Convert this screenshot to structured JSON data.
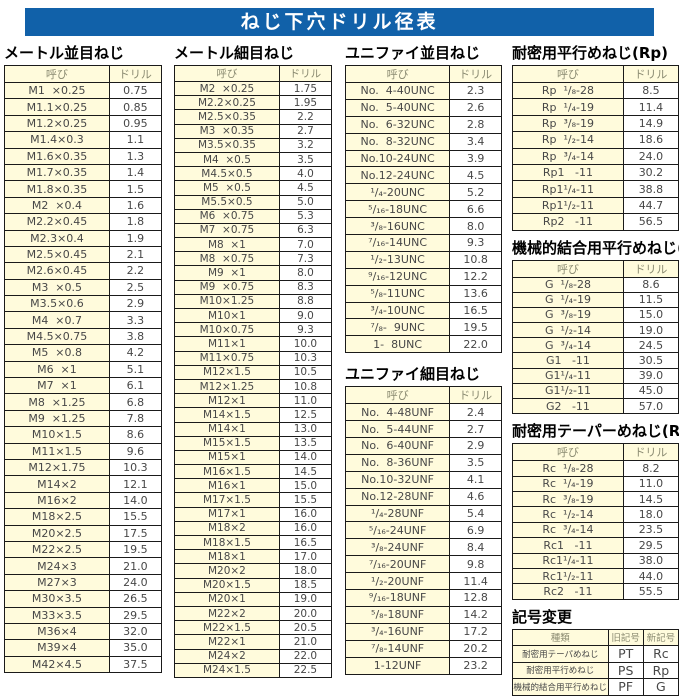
{
  "title": "ねじ下穴ドリル径表",
  "colors": {
    "title_bar_blue": "#1161a9",
    "cell_yellow": "#fffbdc",
    "header_text_gray": "#8b8b72",
    "data_text_gray": "#474747",
    "border_black": "#1a1a1a"
  },
  "sections": {
    "metric_coarse": {
      "title": "メートル並目ねじ",
      "headers": [
        "呼び",
        "ドリル"
      ],
      "rows": [
        [
          "M1  ×0.25",
          "0.75"
        ],
        [
          "M1.1×0.25",
          "0.85"
        ],
        [
          "M1.2×0.25",
          "0.95"
        ],
        [
          "M1.4×0.3",
          "1.1"
        ],
        [
          "M1.6×0.35",
          "1.3"
        ],
        [
          "M1.7×0.35",
          "1.4"
        ],
        [
          "M1.8×0.35",
          "1.5"
        ],
        [
          "M2  ×0.4",
          "1.6"
        ],
        [
          "M2.2×0.45",
          "1.8"
        ],
        [
          "M2.3×0.4",
          "1.9"
        ],
        [
          "M2.5×0.45",
          "2.1"
        ],
        [
          "M2.6×0.45",
          "2.2"
        ],
        [
          "M3  ×0.5",
          "2.5"
        ],
        [
          "M3.5×0.6",
          "2.9"
        ],
        [
          "M4  ×0.7",
          "3.3"
        ],
        [
          "M4.5×0.75",
          "3.8"
        ],
        [
          "M5  ×0.8",
          "4.2"
        ],
        [
          "M6  ×1",
          "5.1"
        ],
        [
          "M7  ×1",
          "6.1"
        ],
        [
          "M8  ×1.25",
          "6.8"
        ],
        [
          "M9  ×1.25",
          "7.8"
        ],
        [
          "M10×1.5",
          "8.6"
        ],
        [
          "M11×1.5",
          "9.6"
        ],
        [
          "M12×1.75",
          "10.3"
        ],
        [
          "M14×2",
          "12.1"
        ],
        [
          "M16×2",
          "14.0"
        ],
        [
          "M18×2.5",
          "15.5"
        ],
        [
          "M20×2.5",
          "17.5"
        ],
        [
          "M22×2.5",
          "19.5"
        ],
        [
          "M24×3",
          "21.0"
        ],
        [
          "M27×3",
          "24.0"
        ],
        [
          "M30×3.5",
          "26.5"
        ],
        [
          "M33×3.5",
          "29.5"
        ],
        [
          "M36×4",
          "32.0"
        ],
        [
          "M39×4",
          "35.0"
        ],
        [
          "M42×4.5",
          "37.5"
        ]
      ]
    },
    "metric_fine": {
      "title": "メートル細目ねじ",
      "headers": [
        "呼び",
        "ドリル"
      ],
      "rows": [
        [
          "M2  ×0.25",
          "1.75"
        ],
        [
          "M2.2×0.25",
          "1.95"
        ],
        [
          "M2.5×0.35",
          "2.2"
        ],
        [
          "M3  ×0.35",
          "2.7"
        ],
        [
          "M3.5×0.35",
          "3.2"
        ],
        [
          "M4  ×0.5",
          "3.5"
        ],
        [
          "M4.5×0.5",
          "4.0"
        ],
        [
          "M5  ×0.5",
          "4.5"
        ],
        [
          "M5.5×0.5",
          "5.0"
        ],
        [
          "M6  ×0.75",
          "5.3"
        ],
        [
          "M7  ×0.75",
          "6.3"
        ],
        [
          "M8  ×1",
          "7.0"
        ],
        [
          "M8  ×0.75",
          "7.3"
        ],
        [
          "M9  ×1",
          "8.0"
        ],
        [
          "M9  ×0.75",
          "8.3"
        ],
        [
          "M10×1.25",
          "8.8"
        ],
        [
          "M10×1",
          "9.0"
        ],
        [
          "M10×0.75",
          "9.3"
        ],
        [
          "M11×1",
          "10.0"
        ],
        [
          "M11×0.75",
          "10.3"
        ],
        [
          "M12×1.5",
          "10.5"
        ],
        [
          "M12×1.25",
          "10.8"
        ],
        [
          "M12×1",
          "11.0"
        ],
        [
          "M14×1.5",
          "12.5"
        ],
        [
          "M14×1",
          "13.0"
        ],
        [
          "M15×1.5",
          "13.5"
        ],
        [
          "M15×1",
          "14.0"
        ],
        [
          "M16×1.5",
          "14.5"
        ],
        [
          "M16×1",
          "15.0"
        ],
        [
          "M17×1.5",
          "15.5"
        ],
        [
          "M17×1",
          "16.0"
        ],
        [
          "M18×2",
          "16.0"
        ],
        [
          "M18×1.5",
          "16.5"
        ],
        [
          "M18×1",
          "17.0"
        ],
        [
          "M20×2",
          "18.0"
        ],
        [
          "M20×1.5",
          "18.5"
        ],
        [
          "M20×1",
          "19.0"
        ],
        [
          "M22×2",
          "20.0"
        ],
        [
          "M22×1.5",
          "20.5"
        ],
        [
          "M22×1",
          "21.0"
        ],
        [
          "M24×2",
          "22.0"
        ],
        [
          "M24×1.5",
          "22.5"
        ]
      ]
    },
    "unified_coarse": {
      "title": "ユニファイ並目ねじ",
      "headers": [
        "呼び",
        "ドリル"
      ],
      "rows": [
        [
          "No.  4-40UNC",
          "2.3"
        ],
        [
          "No.  5-40UNC",
          "2.6"
        ],
        [
          "No.  6-32UNC",
          "2.8"
        ],
        [
          "No.  8-32UNC",
          "3.4"
        ],
        [
          "No.10-24UNC",
          "3.9"
        ],
        [
          "No.12-24UNC",
          "4.5"
        ],
        [
          "¹/₄-20UNC",
          "5.2"
        ],
        [
          "⁵/₁₆-18UNC",
          "6.6"
        ],
        [
          "³/₈-16UNC",
          "8.0"
        ],
        [
          "⁷/₁₆-14UNC",
          "9.3"
        ],
        [
          "¹/₂-13UNC",
          "10.8"
        ],
        [
          "⁹/₁₆-12UNC",
          "12.2"
        ],
        [
          "⁵/₈-11UNC",
          "13.6"
        ],
        [
          "³/₄-10UNC",
          "16.5"
        ],
        [
          "⁷/₈-  9UNC",
          "19.5"
        ],
        [
          "1-  8UNC",
          "22.0"
        ]
      ]
    },
    "unified_fine": {
      "title": "ユニファイ細目ねじ",
      "headers": [
        "呼び",
        "ドリル"
      ],
      "rows": [
        [
          "No.  4-48UNF",
          "2.4"
        ],
        [
          "No.  5-44UNF",
          "2.7"
        ],
        [
          "No.  6-40UNF",
          "2.9"
        ],
        [
          "No.  8-36UNF",
          "3.5"
        ],
        [
          "No.10-32UNF",
          "4.1"
        ],
        [
          "No.12-28UNF",
          "4.6"
        ],
        [
          "¹/₄-28UNF",
          "5.4"
        ],
        [
          "⁵/₁₆-24UNF",
          "6.9"
        ],
        [
          "³/₈-24UNF",
          "8.4"
        ],
        [
          "⁷/₁₆-20UNF",
          "9.8"
        ],
        [
          "¹/₂-20UNF",
          "11.4"
        ],
        [
          "⁹/₁₆-18UNF",
          "12.8"
        ],
        [
          "⁵/₈-18UNF",
          "14.2"
        ],
        [
          "³/₄-16UNF",
          "17.2"
        ],
        [
          "⁷/₈-14UNF",
          "20.2"
        ],
        [
          "1-12UNF",
          "23.2"
        ]
      ]
    },
    "rp": {
      "title": "耐密用平行めねじ(Rp)",
      "headers": [
        "呼び",
        "ドリル"
      ],
      "rows": [
        [
          "Rp  ¹/₈-28",
          "8.5"
        ],
        [
          "Rp  ¹/₄-19",
          "11.4"
        ],
        [
          "Rp  ³/₈-19",
          "14.9"
        ],
        [
          "Rp  ¹/₂-14",
          "18.6"
        ],
        [
          "Rp  ³/₄-14",
          "24.0"
        ],
        [
          "Rp1   -11",
          "30.2"
        ],
        [
          "Rp1¹/₄-11",
          "38.8"
        ],
        [
          "Rp1¹/₂-11",
          "44.7"
        ],
        [
          "Rp2   -11",
          "56.5"
        ]
      ]
    },
    "g": {
      "title": "機械的結合用平行めねじ(G)",
      "headers": [
        "呼び",
        "ドリル"
      ],
      "rows": [
        [
          "G  ¹/₈-28",
          "8.6"
        ],
        [
          "G  ¹/₄-19",
          "11.5"
        ],
        [
          "G  ³/₈-19",
          "15.0"
        ],
        [
          "G  ¹/₂-14",
          "19.0"
        ],
        [
          "G  ³/₄-14",
          "24.5"
        ],
        [
          "G1   -11",
          "30.5"
        ],
        [
          "G1¹/₄-11",
          "39.0"
        ],
        [
          "G1¹/₂-11",
          "45.0"
        ],
        [
          "G2   -11",
          "57.0"
        ]
      ]
    },
    "rc": {
      "title": "耐密用テーパーめねじ(Rc)",
      "headers": [
        "呼び",
        "ドリル"
      ],
      "rows": [
        [
          "Rc  ¹/₈-28",
          "8.2"
        ],
        [
          "Rc  ¹/₄-19",
          "11.0"
        ],
        [
          "Rc  ³/₈-19",
          "14.5"
        ],
        [
          "Rc  ¹/₂-14",
          "18.0"
        ],
        [
          "Rc  ³/₄-14",
          "23.5"
        ],
        [
          "Rc1   -11",
          "29.5"
        ],
        [
          "Rc1¹/₄-11",
          "38.0"
        ],
        [
          "Rc1¹/₂-11",
          "44.0"
        ],
        [
          "Rc2   -11",
          "55.5"
        ]
      ]
    },
    "symbol_change": {
      "title": "記号変更",
      "headers": [
        "種類",
        "旧記号",
        "新記号"
      ],
      "rows": [
        [
          "耐密用テーパめねじ",
          "PT",
          "Rc"
        ],
        [
          "耐密用平行めねじ",
          "PS",
          "Rp"
        ],
        [
          "機械的結合用平行めねじ",
          "PF",
          "G"
        ]
      ]
    }
  }
}
